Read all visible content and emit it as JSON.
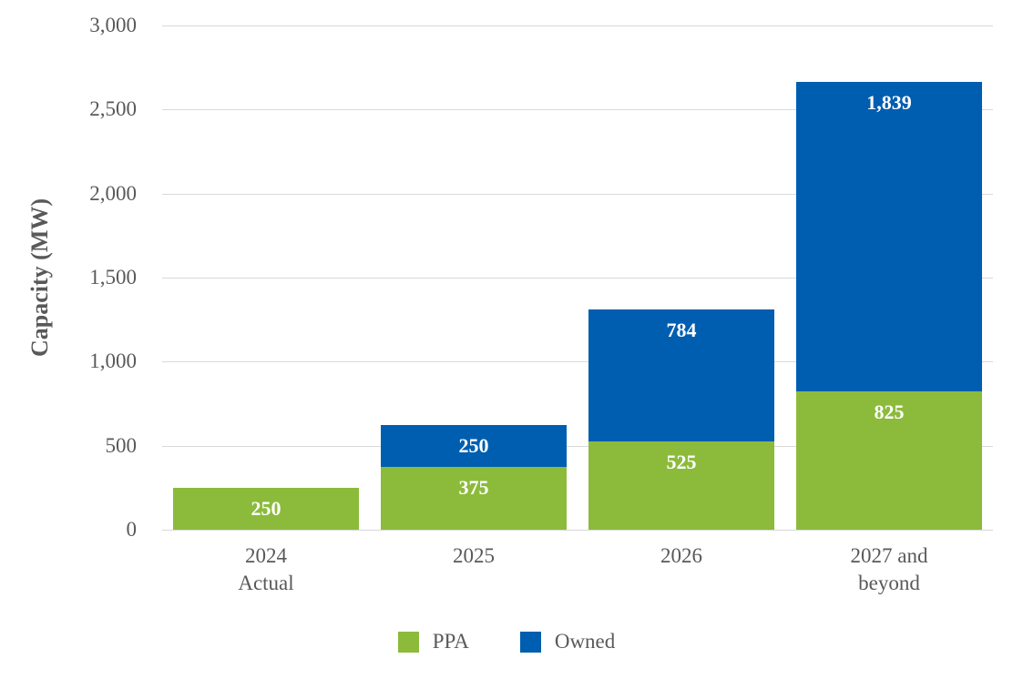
{
  "chart_data": {
    "type": "bar",
    "stacked": true,
    "title": "",
    "ylabel": "Capacity (MW)",
    "xlabel": "",
    "ylim": [
      0,
      3000
    ],
    "ytick_step": 500,
    "yticks": [
      "0",
      "500",
      "1,000",
      "1,500",
      "2,000",
      "2,500",
      "3,000"
    ],
    "grid": "horizontal",
    "legend_position": "bottom",
    "categories": [
      {
        "lines": [
          "2024",
          "Actual"
        ]
      },
      {
        "lines": [
          "2025"
        ]
      },
      {
        "lines": [
          "2026"
        ]
      },
      {
        "lines": [
          "2027 and beyond"
        ]
      }
    ],
    "series": [
      {
        "name": "PPA",
        "color": "#8CBB3C",
        "values": [
          250,
          375,
          525,
          825
        ],
        "labels": [
          "250",
          "375",
          "525",
          "825"
        ]
      },
      {
        "name": "Owned",
        "color": "#005EB0",
        "values": [
          0,
          250,
          784,
          1839
        ],
        "labels": [
          "",
          "250",
          "784",
          "1,839"
        ]
      }
    ],
    "colors": {
      "grid": "#D9D9D9",
      "axis_text": "#595959",
      "value_label_text": "#FFFFFF"
    }
  }
}
